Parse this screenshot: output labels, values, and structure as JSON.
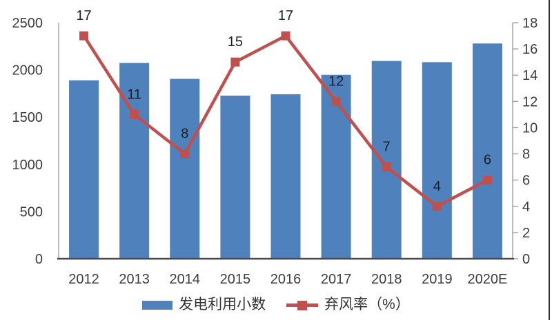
{
  "chart_data": {
    "type": "combo",
    "title": "",
    "categories": [
      "2012",
      "2013",
      "2014",
      "2015",
      "2016",
      "2017",
      "2018",
      "2019",
      "2020E"
    ],
    "series": [
      {
        "name": "发电利用小数",
        "type": "bar",
        "axis": "left",
        "color": "#4F81BD",
        "values": [
          1890,
          2074,
          1905,
          1728,
          1742,
          1948,
          2095,
          2082,
          2280
        ]
      },
      {
        "name": "弃风率（%）",
        "type": "line",
        "axis": "right",
        "color": "#C0504D",
        "values": [
          17,
          11,
          8,
          15,
          17,
          12,
          7,
          4,
          6
        ],
        "data_labels": [
          "17",
          "11",
          "8",
          "15",
          "17",
          "12",
          "7",
          "4",
          "6"
        ]
      }
    ],
    "left_axis": {
      "min": 0,
      "max": 2500,
      "ticks": [
        "0",
        "500",
        "1000",
        "1500",
        "2000",
        "2500"
      ]
    },
    "right_axis": {
      "min": 0,
      "max": 18,
      "ticks": [
        "0",
        "2",
        "4",
        "6",
        "8",
        "10",
        "12",
        "14",
        "16",
        "18"
      ]
    },
    "grid": false,
    "legend_position": "bottom",
    "colors": {
      "axis_text": "#3d3d3d",
      "data_label_text": "#1e1e28",
      "spine": "#a0a0a0",
      "baseline": "#4a4a4a",
      "frame_border": "#2b2b2b"
    }
  }
}
